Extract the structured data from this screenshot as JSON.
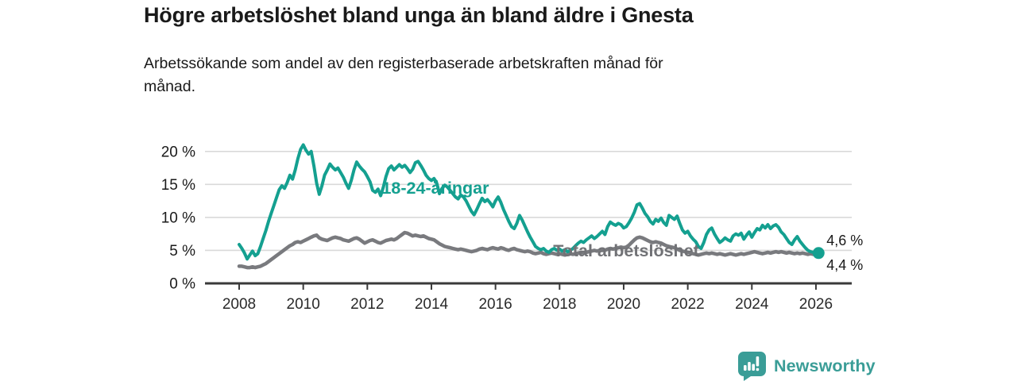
{
  "header": {
    "title": "Högre arbetslöshet bland unga än bland äldre i Gnesta",
    "subtitle": "Arbetssökande som andel av den registerbaserade arbetskraften månad för\nmånad."
  },
  "chart_data": {
    "type": "line",
    "title": "Högre arbetslöshet bland unga än bland äldre i Gnesta",
    "subtitle": "Arbetssökande som andel av den registerbaserade arbetskraften månad för månad.",
    "unit": "%",
    "x_start": 2008,
    "x_step_years": 0.08333,
    "x_ticks": [
      2008,
      2010,
      2012,
      2014,
      2016,
      2018,
      2020,
      2022,
      2024,
      2026
    ],
    "y_ticks": [
      0,
      5,
      10,
      15,
      20
    ],
    "y_tick_suffix": " %",
    "ylim": [
      0,
      21.5
    ],
    "grid": true,
    "legend_position": "inline-labels",
    "series": [
      {
        "name": "Total arbetslöshet",
        "color": "#797a7e",
        "label_color": "#717276",
        "end_label": "4,4 %",
        "end_dot": false,
        "values": [
          2.6,
          2.6,
          2.5,
          2.4,
          2.4,
          2.5,
          2.4,
          2.5,
          2.6,
          2.8,
          3.0,
          3.3,
          3.6,
          3.9,
          4.2,
          4.5,
          4.8,
          5.1,
          5.4,
          5.7,
          5.9,
          6.2,
          6.3,
          6.2,
          6.4,
          6.6,
          6.8,
          7.0,
          7.2,
          7.3,
          6.9,
          6.7,
          6.6,
          6.5,
          6.7,
          6.9,
          7.0,
          6.9,
          6.8,
          6.6,
          6.5,
          6.4,
          6.6,
          6.8,
          6.9,
          6.7,
          6.4,
          6.1,
          6.3,
          6.5,
          6.6,
          6.4,
          6.2,
          6.1,
          6.3,
          6.5,
          6.6,
          6.7,
          6.6,
          6.8,
          7.1,
          7.4,
          7.7,
          7.6,
          7.4,
          7.2,
          7.3,
          7.2,
          7.1,
          7.2,
          7.0,
          6.8,
          6.7,
          6.6,
          6.3,
          6.0,
          5.8,
          5.6,
          5.5,
          5.4,
          5.3,
          5.2,
          5.1,
          5.2,
          5.1,
          5.0,
          4.9,
          4.8,
          4.9,
          5.0,
          5.2,
          5.3,
          5.2,
          5.1,
          5.3,
          5.4,
          5.3,
          5.2,
          5.4,
          5.3,
          5.1,
          5.0,
          5.2,
          5.3,
          5.1,
          5.0,
          4.9,
          4.8,
          4.9,
          4.8,
          4.6,
          4.5,
          4.6,
          4.7,
          4.5,
          4.4,
          4.5,
          4.6,
          4.5,
          4.4,
          4.5,
          4.4,
          4.3,
          4.4,
          4.5,
          4.4,
          4.5,
          4.6,
          4.7,
          4.6,
          4.7,
          4.8,
          4.9,
          5.0,
          4.9,
          5.0,
          5.1,
          5.0,
          5.2,
          5.3,
          5.2,
          5.3,
          5.4,
          5.5,
          5.4,
          5.5,
          5.8,
          6.2,
          6.6,
          6.9,
          7.0,
          6.9,
          6.7,
          6.5,
          6.3,
          6.2,
          6.3,
          6.2,
          6.1,
          5.9,
          5.7,
          5.6,
          5.5,
          5.4,
          5.2,
          5.0,
          4.9,
          4.8,
          4.7,
          4.6,
          4.5,
          4.4,
          4.3,
          4.4,
          4.5,
          4.6,
          4.5,
          4.6,
          4.5,
          4.4,
          4.5,
          4.4,
          4.3,
          4.4,
          4.5,
          4.4,
          4.3,
          4.4,
          4.5,
          4.4,
          4.5,
          4.6,
          4.7,
          4.8,
          4.7,
          4.6,
          4.5,
          4.6,
          4.7,
          4.6,
          4.7,
          4.8,
          4.7,
          4.8,
          4.7,
          4.6,
          4.7,
          4.6,
          4.5,
          4.6,
          4.5,
          4.6,
          4.5,
          4.4,
          4.5,
          4.4,
          4.4,
          4.4
        ]
      },
      {
        "name": "18-24-åringar",
        "color": "#14a090",
        "label_color": "#14a090",
        "end_label": "4,6 %",
        "end_dot": true,
        "values": [
          5.9,
          5.3,
          4.6,
          3.7,
          4.3,
          4.9,
          4.2,
          4.5,
          5.6,
          6.8,
          8.0,
          9.4,
          10.6,
          11.8,
          13.0,
          14.2,
          14.8,
          14.4,
          15.3,
          16.4,
          15.8,
          17.2,
          18.9,
          20.3,
          21.0,
          20.2,
          19.6,
          20.0,
          17.8,
          15.2,
          13.5,
          14.8,
          16.4,
          17.2,
          18.1,
          17.6,
          17.2,
          17.5,
          16.8,
          16.1,
          15.2,
          14.4,
          15.6,
          17.2,
          18.4,
          17.8,
          17.3,
          16.9,
          16.2,
          15.4,
          14.1,
          13.8,
          14.3,
          13.3,
          14.6,
          16.2,
          17.4,
          17.8,
          17.2,
          17.6,
          18.0,
          17.6,
          17.9,
          17.4,
          16.8,
          17.3,
          18.3,
          18.5,
          17.9,
          17.2,
          16.4,
          15.9,
          15.6,
          15.9,
          15.2,
          13.6,
          14.4,
          14.9,
          14.6,
          14.1,
          13.6,
          13.1,
          12.8,
          13.4,
          13.1,
          12.5,
          11.7,
          10.9,
          10.4,
          11.2,
          12.1,
          12.9,
          12.4,
          12.7,
          12.2,
          11.6,
          12.5,
          13.1,
          12.3,
          11.2,
          10.3,
          9.4,
          8.6,
          8.3,
          9.1,
          10.3,
          9.6,
          8.7,
          7.8,
          7.0,
          6.3,
          5.6,
          5.3,
          5.1,
          5.3,
          4.9,
          4.7,
          5.1,
          5.3,
          5.0,
          5.2,
          4.9,
          5.1,
          4.8,
          5.0,
          5.3,
          5.7,
          6.1,
          6.4,
          6.2,
          6.6,
          6.9,
          7.2,
          6.8,
          7.1,
          7.5,
          7.9,
          7.4,
          8.6,
          9.3,
          9.0,
          8.8,
          9.1,
          8.9,
          8.4,
          8.6,
          9.2,
          9.9,
          10.8,
          11.9,
          12.1,
          11.4,
          10.6,
          10.1,
          9.4,
          9.0,
          9.7,
          9.4,
          9.9,
          9.2,
          8.8,
          10.3,
          10.0,
          9.7,
          10.2,
          9.1,
          8.1,
          7.6,
          7.9,
          7.2,
          6.7,
          6.3,
          5.6,
          5.3,
          6.2,
          7.4,
          8.1,
          8.4,
          7.5,
          6.8,
          6.2,
          6.5,
          6.9,
          6.6,
          6.4,
          7.2,
          7.5,
          7.3,
          7.6,
          6.7,
          7.3,
          7.8,
          7.0,
          7.7,
          8.3,
          8.1,
          8.8,
          8.4,
          8.9,
          8.3,
          8.7,
          8.9,
          8.5,
          7.8,
          7.4,
          6.8,
          6.2,
          5.9,
          6.6,
          7.1,
          6.4,
          5.9,
          5.4,
          5.0,
          4.8,
          4.7,
          4.6,
          4.6
        ]
      }
    ]
  },
  "footer": {
    "brand": "Newsworthy"
  },
  "colors": {
    "accent_teal": "#14a090",
    "line_gray": "#797a7e",
    "brand_teal": "#3a9d97",
    "grid": "#d9d9d9",
    "axis": "#3a3a3a",
    "text": "#1a1a1a"
  }
}
